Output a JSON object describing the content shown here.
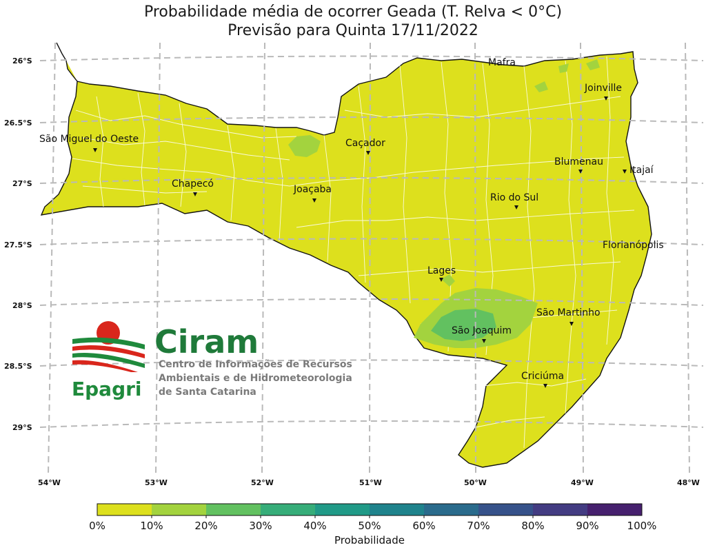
{
  "title": {
    "line1": "Probabilidade média de ocorrer Geada (T. Relva < 0°C)",
    "line2": "Previsão para Quinta 17/11/2022"
  },
  "latitude_labels": [
    "26°S",
    "26.5°S",
    "27°S",
    "27.5°S",
    "28°S",
    "28.5°S",
    "29°S"
  ],
  "longitude_labels": [
    "54°W",
    "53°W",
    "52°W",
    "51°W",
    "50°W",
    "49°W",
    "48°W"
  ],
  "cities": [
    {
      "name": "Mafra",
      "lon": -49.8,
      "lat": -26.12
    },
    {
      "name": "Joinville",
      "lon": -48.85,
      "lat": -26.3
    },
    {
      "name": "São Miguel do Oeste",
      "lon": -53.52,
      "lat": -26.73
    },
    {
      "name": "Caçador",
      "lon": -51.02,
      "lat": -26.78
    },
    {
      "name": "Blumenau",
      "lon": -49.07,
      "lat": -26.92
    },
    {
      "name": "Itajaí",
      "lon": -48.66,
      "lat": -26.91
    },
    {
      "name": "Chapecó",
      "lon": -52.62,
      "lat": -27.1
    },
    {
      "name": "Joaçaba",
      "lon": -51.5,
      "lat": -27.17
    },
    {
      "name": "Rio do Sul",
      "lon": -49.64,
      "lat": -27.21
    },
    {
      "name": "Florianópolis",
      "lon": -48.55,
      "lat": -27.59
    },
    {
      "name": "Lages",
      "lon": -50.33,
      "lat": -27.81
    },
    {
      "name": "São Martinho",
      "lon": -48.99,
      "lat": -28.16
    },
    {
      "name": "São Joaquim",
      "lon": -49.93,
      "lat": -28.29
    },
    {
      "name": "Criciúma",
      "lon": -49.37,
      "lat": -28.68
    }
  ],
  "logo": {
    "brand": "Ciram",
    "org": "Epagri",
    "subtitle_lines": [
      "Centro de Informações de Recursos",
      "Ambientais e de Hidrometeorologia",
      "de Santa Catarina"
    ]
  },
  "colorbar": {
    "label": "Probabilidade",
    "ticks": [
      "0%",
      "10%",
      "20%",
      "30%",
      "40%",
      "50%",
      "60%",
      "70%",
      "80%",
      "90%",
      "100%"
    ],
    "colors": [
      "#dde01d",
      "#a3d33e",
      "#62c160",
      "#36ad79",
      "#209a87",
      "#1f838c",
      "#2a6b8c",
      "#36528a",
      "#433c82",
      "#46206e"
    ]
  },
  "map_colors": {
    "land": "#dde01d",
    "frost_10_20": "#a3d33e",
    "frost_20_30": "#62c160",
    "boundary": "#111111",
    "municipal": "#ffffff",
    "grid": "#b9b9b9"
  }
}
